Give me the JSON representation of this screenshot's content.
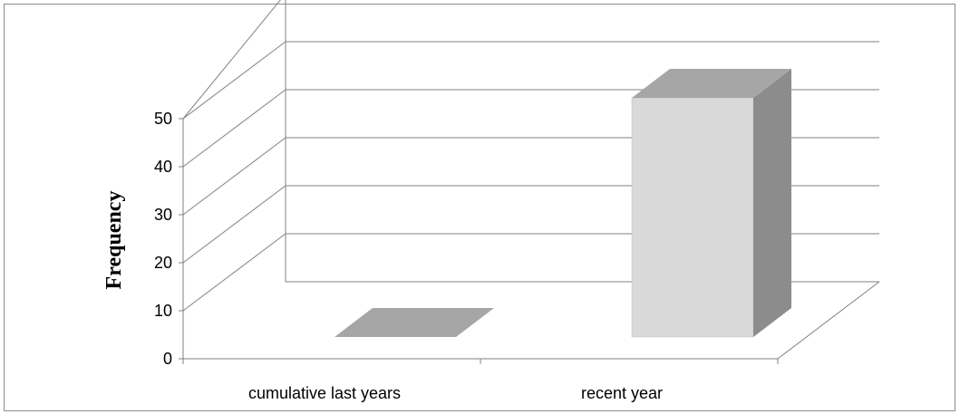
{
  "chart_data": {
    "type": "bar",
    "style": "3d-column",
    "categories": [
      "cumulative last years",
      "recent year"
    ],
    "values": [
      0,
      50
    ],
    "title": "",
    "xlabel": "",
    "ylabel": "Frequency",
    "ylim": [
      0,
      50
    ],
    "yticks": [
      "0",
      "10",
      "20",
      "30",
      "40",
      "50"
    ],
    "grid": true,
    "legend": "none",
    "colors": {
      "bar_front": "#d9d9d9",
      "bar_top": "#a6a6a6",
      "bar_side": "#8c8c8c",
      "gridline": "#808080",
      "axis": "#808080"
    }
  }
}
